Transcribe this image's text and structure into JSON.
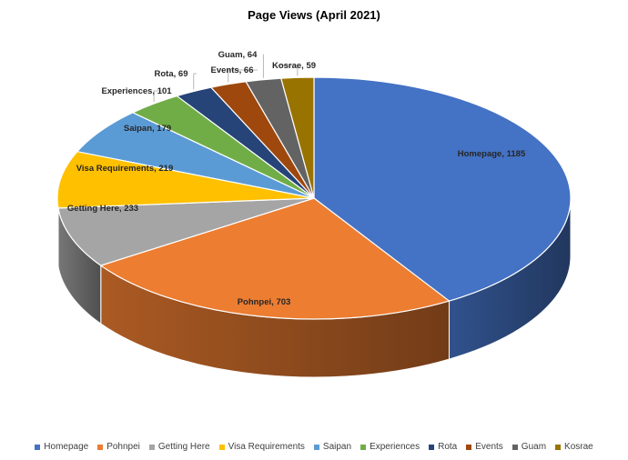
{
  "chart_data": {
    "type": "pie",
    "title": "Page Views (April 2021)",
    "legend_position": "bottom",
    "style": "3d",
    "slices": [
      {
        "label": "Homepage",
        "value": 1185,
        "color": "#4472C4",
        "data_label": "Homepage, 1185"
      },
      {
        "label": "Pohnpei",
        "value": 703,
        "color": "#ED7D31",
        "data_label": "Pohnpei, 703"
      },
      {
        "label": "Getting Here",
        "value": 233,
        "color": "#A5A5A5",
        "data_label": "Getting Here, 233"
      },
      {
        "label": "Visa Requirements",
        "value": 219,
        "color": "#FFC000",
        "data_label": "Visa Requirements, 219"
      },
      {
        "label": "Saipan",
        "value": 179,
        "color": "#5B9BD5",
        "data_label": "Saipan, 179"
      },
      {
        "label": "Experiences",
        "value": 101,
        "color": "#70AD47",
        "data_label": "Experiences, 101"
      },
      {
        "label": "Rota",
        "value": 69,
        "color": "#264478",
        "data_label": "Rota, 69"
      },
      {
        "label": "Events",
        "value": 66,
        "color": "#9E480E",
        "data_label": "Events, 66"
      },
      {
        "label": "Guam",
        "value": 64,
        "color": "#636363",
        "data_label": "Guam, 64"
      },
      {
        "label": "Kosrae",
        "value": 59,
        "color": "#997300",
        "data_label": "Kosrae, 59"
      }
    ]
  }
}
